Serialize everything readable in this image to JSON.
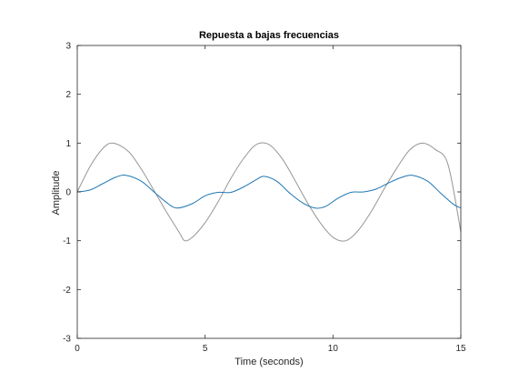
{
  "chart_data": {
    "type": "line",
    "title": "Repuesta a bajas frecuencias",
    "xlabel": "Time (seconds)",
    "ylabel": "Amplitude",
    "xlim": [
      0,
      15
    ],
    "ylim": [
      -3,
      3
    ],
    "xticks": [
      0,
      5,
      10,
      15
    ],
    "yticks": [
      -3,
      -2,
      -1,
      0,
      1,
      2,
      3
    ],
    "grid": false,
    "legend": "none",
    "series": [
      {
        "color": "#969696",
        "style": "solid",
        "x": [
          0,
          0.5,
          1.0,
          1.4,
          2.0,
          2.5,
          3.0,
          3.5,
          4.0,
          4.2,
          4.5,
          5.0,
          5.5,
          6.0,
          6.5,
          7.0,
          7.5,
          8.0,
          8.5,
          9.0,
          9.5,
          10.0,
          10.5,
          11.0,
          11.5,
          12.0,
          12.5,
          13.0,
          13.5,
          14.0,
          14.5,
          15.0
        ],
        "y": [
          0,
          0.52,
          0.89,
          1.0,
          0.83,
          0.47,
          0.03,
          -0.42,
          -0.84,
          -1.0,
          -0.93,
          -0.63,
          -0.21,
          0.27,
          0.68,
          0.97,
          0.97,
          0.69,
          0.25,
          -0.22,
          -0.63,
          -0.93,
          -1.0,
          -0.78,
          -0.4,
          0.06,
          0.49,
          0.86,
          1.0,
          0.87,
          0.56,
          -0.82
        ]
      },
      {
        "color": "#1f77b4",
        "style": "solid",
        "x": [
          0,
          0.5,
          1.0,
          1.5,
          1.9,
          2.5,
          3.0,
          3.5,
          3.9,
          4.5,
          5.0,
          5.5,
          6.0,
          6.5,
          7.0,
          7.3,
          7.8,
          8.3,
          8.8,
          9.3,
          9.7,
          10.2,
          10.7,
          11.2,
          11.7,
          12.2,
          12.7,
          13.1,
          13.7,
          14.2,
          14.7,
          15.0
        ],
        "y": [
          0,
          0.04,
          0.17,
          0.3,
          0.34,
          0.22,
          0.0,
          -0.22,
          -0.33,
          -0.24,
          -0.08,
          -0.01,
          -0.01,
          0.1,
          0.25,
          0.32,
          0.22,
          -0.02,
          -0.22,
          -0.33,
          -0.3,
          -0.13,
          -0.01,
          0.0,
          0.06,
          0.19,
          0.3,
          0.34,
          0.22,
          -0.02,
          -0.25,
          -0.33
        ]
      }
    ]
  }
}
